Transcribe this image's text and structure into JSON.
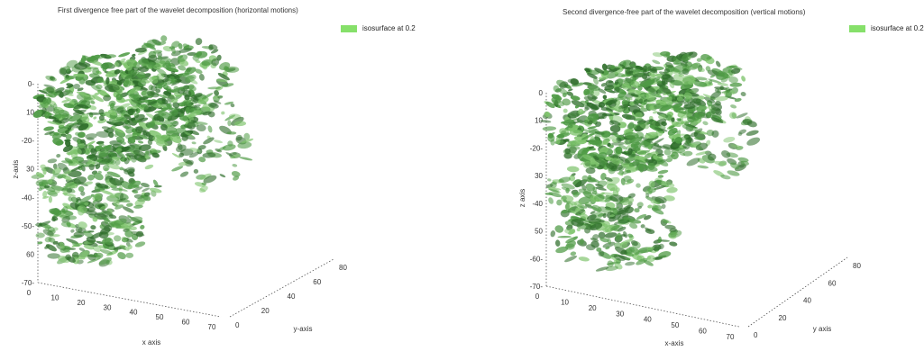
{
  "chart_data": [
    {
      "type": "3d-isosurface",
      "title": "First divergence free part of the wavelet decomposition (horizontal motions)",
      "legend": "isosurface at 0.2",
      "legend_color": "#86e06a",
      "surface_color": "#4e9a44",
      "xlabel": "x axis",
      "ylabel": "y-axis",
      "zlabel": "z-axis",
      "x_ticks": [
        "0",
        "10",
        "20",
        "30",
        "40",
        "50",
        "60",
        "70"
      ],
      "y_ticks": [
        "0",
        "20",
        "40",
        "60",
        "80"
      ],
      "z_ticks": [
        "0-",
        "10",
        "-20-",
        "30",
        "-40-",
        "-50-",
        "60",
        "-70-"
      ],
      "xlim": [
        0,
        70
      ],
      "ylim": [
        0,
        80
      ],
      "zlim": [
        -70,
        0
      ],
      "isovalue": 0.2
    },
    {
      "type": "3d-isosurface",
      "title": "Second divergence-free part of the wavelet decomposition (vertical motions)",
      "legend": "isosurface at 0.2",
      "legend_color": "#86e06a",
      "surface_color": "#4e9a44",
      "xlabel": "x-axis",
      "ylabel": "y axis",
      "zlabel": "z axis",
      "x_ticks": [
        "0",
        "10",
        "20",
        "30",
        "40",
        "50",
        "60",
        "70"
      ],
      "y_ticks": [
        "0",
        "20",
        "40",
        "60",
        "80"
      ],
      "z_ticks": [
        "0",
        "10",
        "-20-",
        "30",
        "-40",
        "50",
        "-60-",
        "-70-"
      ],
      "xlim": [
        0,
        70
      ],
      "ylim": [
        0,
        80
      ],
      "zlim": [
        -70,
        0
      ],
      "isovalue": 0.2
    }
  ]
}
